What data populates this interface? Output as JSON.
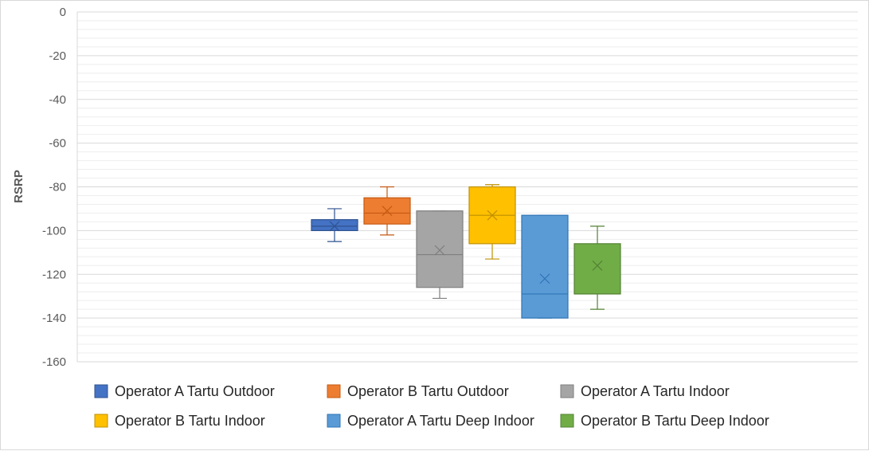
{
  "chart_data": {
    "type": "boxplot",
    "ylabel": "RSRP",
    "ylim": [
      -160,
      0
    ],
    "ytick_step": 20,
    "minor_grid_step": 4,
    "grid": true,
    "legend_position": "bottom",
    "series": [
      {
        "name": "Operator A Tartu Outdoor",
        "color": "#4472c4",
        "stroke": "#2f528f",
        "min": -105,
        "q1": -100,
        "median": -98,
        "q3": -95,
        "max": -90,
        "mean": -98
      },
      {
        "name": "Operator B Tartu Outdoor",
        "color": "#ed7d31",
        "stroke": "#c55a11",
        "min": -102,
        "q1": -97,
        "median": -92,
        "q3": -85,
        "max": -80,
        "mean": -91
      },
      {
        "name": "Operator A Tartu Indoor",
        "color": "#a5a5a5",
        "stroke": "#7f7f7f",
        "min": -131,
        "q1": -126,
        "median": -111,
        "q3": -91,
        "max": -91,
        "mean": -109
      },
      {
        "name": "Operator B Tartu Indoor",
        "color": "#ffc000",
        "stroke": "#bf9000",
        "min": -113,
        "q1": -106,
        "median": -93,
        "q3": -80,
        "max": -79,
        "mean": -93
      },
      {
        "name": "Operator A Tartu Deep Indoor",
        "color": "#5b9bd5",
        "stroke": "#2e75b6",
        "min": -140,
        "q1": -140,
        "median": -129,
        "q3": -93,
        "max": -93,
        "mean": -122
      },
      {
        "name": "Operator B Tartu Deep Indoor",
        "color": "#70ad47",
        "stroke": "#548235",
        "min": -136,
        "q1": -129,
        "median": -129,
        "q3": -106,
        "max": -98,
        "mean": -116
      }
    ]
  }
}
